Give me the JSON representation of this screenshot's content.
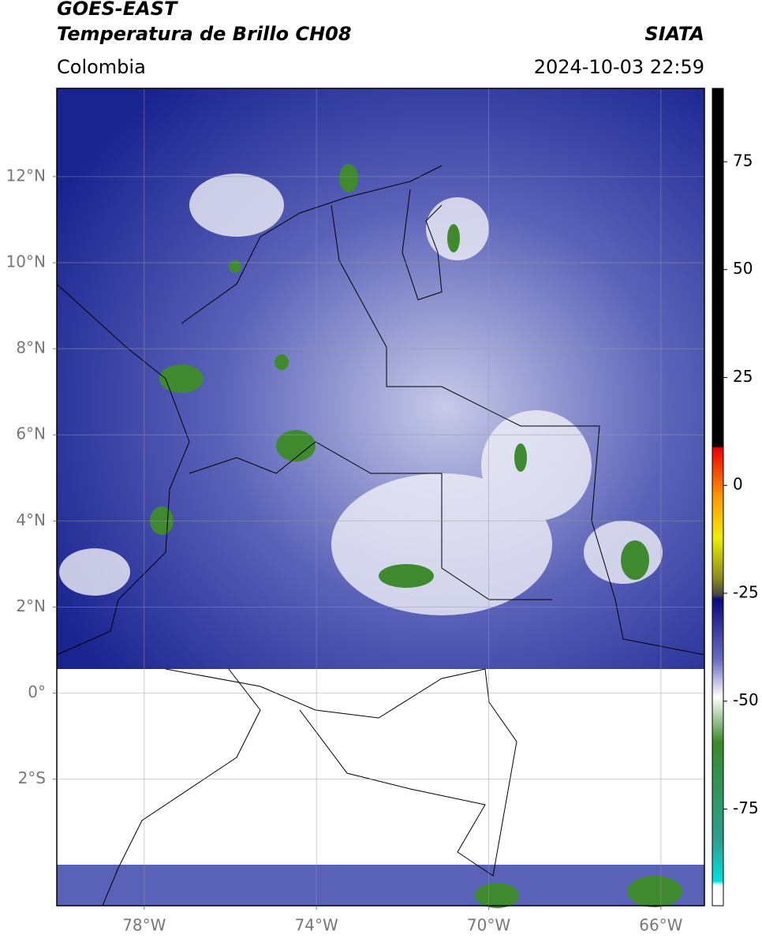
{
  "header": {
    "title": "GOES-EAST",
    "subtitle": "Temperatura de Brillo CH08",
    "source": "SIATA",
    "region": "Colombia",
    "datetime": "2024-10-03 22:59"
  },
  "map": {
    "xlim": [
      -80.03,
      -64.99
    ],
    "ylim": [
      -4.94,
      14.05
    ],
    "xticks": [
      {
        "value": -78,
        "label": "78°W"
      },
      {
        "value": -74,
        "label": "74°W"
      },
      {
        "value": -70,
        "label": "70°W"
      },
      {
        "value": -66,
        "label": "66°W"
      }
    ],
    "yticks": [
      {
        "value": 12,
        "label": "12°N"
      },
      {
        "value": 10,
        "label": "10°N"
      },
      {
        "value": 8,
        "label": "8°N"
      },
      {
        "value": 6,
        "label": "6°N"
      },
      {
        "value": 4,
        "label": "4°N"
      },
      {
        "value": 2,
        "label": "2°N"
      },
      {
        "value": 0,
        "label": "0°"
      },
      {
        "value": -2,
        "label": "2°S"
      }
    ],
    "grid": true
  },
  "colorbar": {
    "lim": [
      -97.4,
      92
    ],
    "ticks": [
      75,
      50,
      25,
      0,
      -25,
      -50,
      -75
    ]
  }
}
